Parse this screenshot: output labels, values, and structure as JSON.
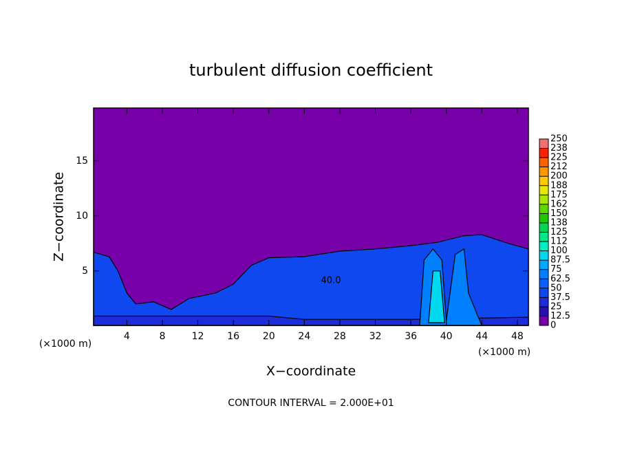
{
  "chart_data": {
    "type": "contour",
    "title": "turbulent diffusion coefficient",
    "xlabel": "X−coordinate",
    "ylabel": "Z−coordinate",
    "xunit": "(×1000 m)",
    "yunit": "(×1000 m)",
    "footer": "CONTOUR INTERVAL = 2.000E+01",
    "xlim": [
      0.25,
      49.25
    ],
    "ylim": [
      0.05,
      19.8
    ],
    "xticks": [
      4,
      8,
      12,
      16,
      20,
      24,
      28,
      32,
      36,
      40,
      44,
      48
    ],
    "yticks": [
      5,
      10,
      15
    ],
    "colorbar_ticks": [
      0,
      12.5,
      25,
      37.5,
      50,
      62.5,
      75,
      87.5,
      100,
      {
        "value": 112.5,
        "label": "112"
      },
      125,
      {
        "value": 137.5,
        "label": "138"
      },
      150,
      {
        "value": 162.5,
        "label": "162"
      },
      175,
      {
        "value": 187.5,
        "label": "188"
      },
      200,
      {
        "value": 212.5,
        "label": "212"
      },
      225,
      {
        "value": 237.5,
        "label": "238"
      },
      250
    ],
    "colors": [
      "#7800a8",
      "#2a10b0",
      "#1c2cd8",
      "#1048f0",
      "#0a60ff",
      "#0080ff",
      "#00a8ff",
      "#00d8f0",
      "#00f0c0",
      "#00e888",
      "#00d850",
      "#20c800",
      "#60d800",
      "#a8e800",
      "#e8e800",
      "#ffc800",
      "#ff9800",
      "#ff6000",
      "#ff2000",
      "#f07070"
    ],
    "contour_label": "40.0",
    "contour_label_at": [
      27,
      4.1
    ],
    "regions": [
      {
        "level": 37.5,
        "points": [
          [
            0.25,
            0.05
          ],
          [
            0.25,
            6.7
          ],
          [
            2,
            6.3
          ],
          [
            3,
            5
          ],
          [
            4,
            3
          ],
          [
            5,
            2
          ],
          [
            7,
            2.2
          ],
          [
            9,
            1.5
          ],
          [
            11,
            2.5
          ],
          [
            14,
            3
          ],
          [
            16,
            3.8
          ],
          [
            18,
            5.5
          ],
          [
            20,
            6.2
          ],
          [
            24,
            6.3
          ],
          [
            28,
            6.8
          ],
          [
            32,
            7
          ],
          [
            36,
            7.3
          ],
          [
            39,
            7.6
          ],
          [
            42,
            8.2
          ],
          [
            44,
            8.3
          ],
          [
            47,
            7.5
          ],
          [
            49.25,
            7
          ],
          [
            49.25,
            0.05
          ]
        ]
      },
      {
        "level": 25,
        "points": [
          [
            0.25,
            0.05
          ],
          [
            0.25,
            0.9
          ],
          [
            20,
            0.9
          ],
          [
            24,
            0.6
          ],
          [
            36,
            0.6
          ],
          [
            49.25,
            0.8
          ],
          [
            49.25,
            0.05
          ]
        ]
      },
      {
        "level": 62.5,
        "points": [
          [
            37,
            0.05
          ],
          [
            37.5,
            6
          ],
          [
            38.5,
            7
          ],
          [
            39.5,
            6
          ],
          [
            40,
            0.5
          ],
          [
            41,
            6.5
          ],
          [
            42,
            7
          ],
          [
            42.5,
            3
          ],
          [
            43.5,
            1
          ],
          [
            44,
            0.05
          ]
        ]
      },
      {
        "level": 87.5,
        "points": [
          [
            38,
            0.3
          ],
          [
            38.5,
            5
          ],
          [
            39.3,
            5
          ],
          [
            39.8,
            0.3
          ]
        ]
      }
    ]
  }
}
